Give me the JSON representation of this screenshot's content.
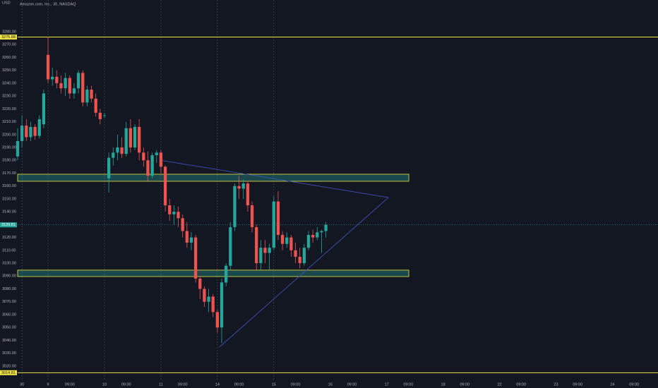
{
  "header": {
    "title": "Amazon.com, Inc., 30, NASDAQ",
    "currency": "USD"
  },
  "chart_data": {
    "type": "candlestick",
    "up_color": "#26a69a",
    "down_color": "#ef5350",
    "xlim": [
      0,
      147.5
    ],
    "ylim": [
      3009.5,
      3304.7
    ],
    "xticks": [
      {
        "value": 1,
        "label": "30"
      },
      {
        "value": 7,
        "label": "9"
      },
      {
        "value": 12,
        "label": "09:00"
      },
      {
        "value": 20,
        "label": "10"
      },
      {
        "value": 25,
        "label": "09:00"
      },
      {
        "value": 33,
        "label": "11"
      },
      {
        "value": 38,
        "label": "09:00"
      },
      {
        "value": 46,
        "label": "14"
      },
      {
        "value": 51,
        "label": "09:00"
      },
      {
        "value": 59,
        "label": "15"
      },
      {
        "value": 64,
        "label": "09:00"
      },
      {
        "value": 72,
        "label": "16"
      },
      {
        "value": 77,
        "label": "09:00"
      },
      {
        "value": 85,
        "label": "17"
      },
      {
        "value": 90,
        "label": "09:00"
      },
      {
        "value": 98,
        "label": "18"
      },
      {
        "value": 103,
        "label": "09:00"
      },
      {
        "value": 111,
        "label": "22"
      },
      {
        "value": 116,
        "label": "09:00"
      },
      {
        "value": 124,
        "label": "23"
      },
      {
        "value": 129,
        "label": "09:00"
      },
      {
        "value": 137,
        "label": "24"
      },
      {
        "value": 142,
        "label": "09:00"
      }
    ],
    "yticks": [
      {
        "value": 3020,
        "label": "3020.00"
      },
      {
        "value": 3030,
        "label": "3030.00"
      },
      {
        "value": 3040,
        "label": "3040.00"
      },
      {
        "value": 3050,
        "label": "3050.00"
      },
      {
        "value": 3060,
        "label": "3060.00"
      },
      {
        "value": 3070,
        "label": "3070.00"
      },
      {
        "value": 3080,
        "label": "3080.00"
      },
      {
        "value": 3090,
        "label": "3090.00"
      },
      {
        "value": 3100,
        "label": "3100.00"
      },
      {
        "value": 3110,
        "label": "3110.00"
      },
      {
        "value": 3120,
        "label": "3120.00"
      },
      {
        "value": 3130,
        "label": "3130.00"
      },
      {
        "value": 3140,
        "label": "3140.00"
      },
      {
        "value": 3150,
        "label": "3150.00"
      },
      {
        "value": 3160,
        "label": "3160.00"
      },
      {
        "value": 3170,
        "label": "3170.00"
      },
      {
        "value": 3180,
        "label": "3180.00"
      },
      {
        "value": 3190,
        "label": "3190.00"
      },
      {
        "value": 3200,
        "label": "3200.00"
      },
      {
        "value": 3210,
        "label": "3210.00"
      },
      {
        "value": 3220,
        "label": "3220.00"
      },
      {
        "value": 3230,
        "label": "3230.00"
      },
      {
        "value": 3240,
        "label": "3240.00"
      },
      {
        "value": 3250,
        "label": "3250.00"
      },
      {
        "value": 3260,
        "label": "3260.00"
      },
      {
        "value": 3270,
        "label": "3270.00"
      },
      {
        "value": 3280,
        "label": "3280.00"
      }
    ],
    "open": [
      3183,
      3195,
      3207,
      3198,
      3206,
      3199,
      3208,
      3262,
      3243,
      3245,
      3240,
      3236,
      3244,
      3232,
      3236,
      3248,
      3225,
      3235,
      3228,
      3217,
      3215,
      3166,
      3182,
      3186,
      3190,
      3185,
      3205,
      3190,
      3206,
      3186,
      3180,
      3168,
      3184,
      3186,
      3175,
      3145,
      3138,
      3140,
      3135,
      3125,
      3116,
      3120,
      3088,
      3080,
      3070,
      3074,
      3062,
      3050,
      3085,
      3098,
      3128,
      3160,
      3158,
      3162,
      3145,
      3128,
      3100,
      3112,
      3108,
      3112,
      3148,
      3122,
      3115,
      3120,
      3110,
      3105,
      3100,
      3112,
      3122,
      3120,
      3124,
      3125
    ],
    "high": [
      3205,
      3215,
      3212,
      3210,
      3208,
      3215,
      3235,
      3276,
      3252,
      3250,
      3246,
      3248,
      3246,
      3240,
      3250,
      3250,
      3238,
      3238,
      3232,
      3220,
      3217,
      3186,
      3190,
      3200,
      3198,
      3210,
      3212,
      3208,
      3212,
      3190,
      3187,
      3186,
      3188,
      3188,
      3176,
      3150,
      3145,
      3144,
      3138,
      3132,
      3124,
      3122,
      3090,
      3082,
      3080,
      3076,
      3064,
      3088,
      3100,
      3132,
      3162,
      3168,
      3165,
      3164,
      3148,
      3130,
      3118,
      3118,
      3115,
      3152,
      3156,
      3125,
      3124,
      3122,
      3116,
      3112,
      3115,
      3125,
      3126,
      3128,
      3126,
      3132
    ],
    "low": [
      3180,
      3190,
      3195,
      3195,
      3196,
      3197,
      3205,
      3240,
      3238,
      3236,
      3232,
      3230,
      3228,
      3228,
      3232,
      3222,
      3222,
      3225,
      3214,
      3208,
      3213,
      3155,
      3176,
      3180,
      3182,
      3183,
      3186,
      3188,
      3180,
      3175,
      3164,
      3166,
      3178,
      3170,
      3140,
      3133,
      3130,
      3128,
      3120,
      3112,
      3110,
      3085,
      3072,
      3066,
      3062,
      3058,
      3046,
      3038,
      3082,
      3095,
      3125,
      3150,
      3150,
      3140,
      3124,
      3095,
      3095,
      3100,
      3095,
      3110,
      3118,
      3110,
      3112,
      3105,
      3100,
      3096,
      3098,
      3110,
      3116,
      3118,
      3108,
      3120
    ],
    "close": [
      3195,
      3207,
      3198,
      3206,
      3199,
      3212,
      3232,
      3243,
      3245,
      3240,
      3236,
      3244,
      3232,
      3236,
      3248,
      3225,
      3235,
      3228,
      3217,
      3212,
      3215,
      3182,
      3186,
      3190,
      3185,
      3205,
      3190,
      3206,
      3186,
      3180,
      3168,
      3184,
      3186,
      3175,
      3145,
      3138,
      3140,
      3135,
      3125,
      3116,
      3120,
      3088,
      3080,
      3070,
      3074,
      3062,
      3050,
      3085,
      3098,
      3128,
      3160,
      3158,
      3162,
      3145,
      3128,
      3100,
      3112,
      3108,
      3112,
      3148,
      3122,
      3115,
      3120,
      3110,
      3105,
      3100,
      3112,
      3122,
      3120,
      3124,
      3125,
      3129.81
    ],
    "levels": [
      {
        "value": 3275.88,
        "color": "#f0e442"
      },
      {
        "value": 3014.81,
        "color": "#f0e442"
      }
    ],
    "zones": [
      {
        "low": 3163.7,
        "high": 3169.2,
        "x_end": 90.1,
        "color": "#f0e442"
      },
      {
        "low": 3089.6,
        "high": 3094.6,
        "x_end": 90.1,
        "color": "#f0e442"
      }
    ],
    "trendlines": [
      {
        "color": "#3f51b5",
        "points": [
          {
            "x": 33,
            "y": 3180
          },
          {
            "x": 85.4,
            "y": 3151.1
          }
        ]
      },
      {
        "color": "#3f51b5",
        "points": [
          {
            "x": 46.5,
            "y": 3034.8
          },
          {
            "x": 85.4,
            "y": 3151.1
          }
        ]
      }
    ]
  }
}
